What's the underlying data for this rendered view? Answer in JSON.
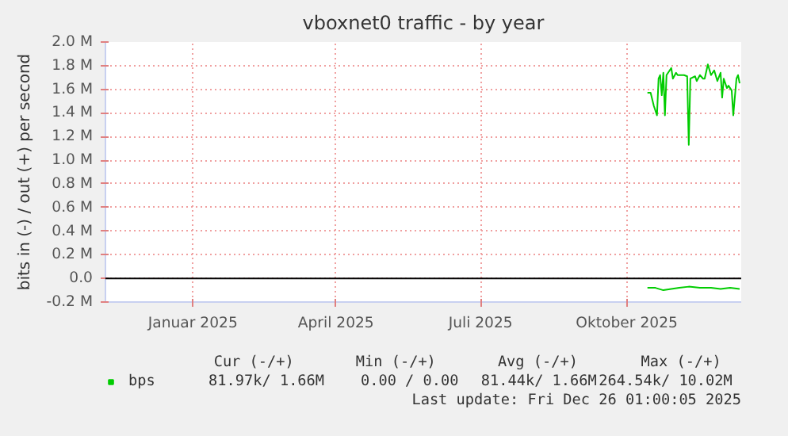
{
  "chart_data": {
    "type": "line",
    "title": "vboxnet0 traffic - by year",
    "ylabel": "bits in (-) / out (+) per second",
    "xlim": [
      "2024-11-22",
      "2025-12-27"
    ],
    "xticks": [
      {
        "value": "2025-01-16",
        "label": "Januar 2025"
      },
      {
        "value": "2025-04-16",
        "label": "April 2025"
      },
      {
        "value": "2025-07-16",
        "label": "Juli 2025"
      },
      {
        "value": "2025-10-16",
        "label": "Oktober 2025"
      }
    ],
    "ylim": [
      -0.2,
      2.0
    ],
    "yticks": [
      {
        "value": -0.2,
        "label": "-0.2 M"
      },
      {
        "value": 0.0,
        "label": "0.0"
      },
      {
        "value": 0.2,
        "label": "0.2 M"
      },
      {
        "value": 0.4,
        "label": "0.4 M"
      },
      {
        "value": 0.6,
        "label": "0.6 M"
      },
      {
        "value": 0.8,
        "label": "0.8 M"
      },
      {
        "value": 1.0,
        "label": "1.0 M"
      },
      {
        "value": 1.2,
        "label": "1.2 M"
      },
      {
        "value": 1.4,
        "label": "1.4 M"
      },
      {
        "value": 1.6,
        "label": "1.6 M"
      },
      {
        "value": 1.8,
        "label": "1.8 M"
      },
      {
        "value": 2.0,
        "label": "2.0 M"
      }
    ],
    "grid": true,
    "legend": "bottom left",
    "ref_lines": [
      {
        "axis": "y",
        "value": 0,
        "color": "#000000"
      }
    ],
    "series": [
      {
        "name": "bps",
        "color": "#00cc00",
        "x": [
          "2025-10-29",
          "2025-10-31",
          "2025-11-02",
          "2025-11-04",
          "2025-11-05",
          "2025-11-06",
          "2025-11-07",
          "2025-11-08",
          "2025-11-09",
          "2025-11-10",
          "2025-11-12",
          "2025-11-13",
          "2025-11-14",
          "2025-11-16",
          "2025-11-17",
          "2025-11-21",
          "2025-11-23",
          "2025-11-24",
          "2025-11-25",
          "2025-11-28",
          "2025-11-29",
          "2025-12-01",
          "2025-12-03",
          "2025-12-04",
          "2025-12-06",
          "2025-12-08",
          "2025-12-10",
          "2025-12-12",
          "2025-12-14",
          "2025-12-15",
          "2025-12-16",
          "2025-12-18",
          "2025-12-19",
          "2025-12-21",
          "2025-12-22",
          "2025-12-24",
          "2025-12-25",
          "2025-12-26"
        ],
        "values": [
          1.57,
          1.57,
          1.46,
          1.38,
          1.69,
          1.72,
          1.55,
          1.74,
          1.38,
          1.72,
          1.76,
          1.78,
          1.69,
          1.74,
          1.72,
          1.72,
          1.71,
          1.13,
          1.69,
          1.71,
          1.67,
          1.72,
          1.69,
          1.69,
          1.81,
          1.72,
          1.76,
          1.67,
          1.74,
          1.53,
          1.69,
          1.61,
          1.63,
          1.59,
          1.38,
          1.69,
          1.72,
          1.65
        ]
      },
      {
        "color": "#00cc00",
        "x": [
          "2025-10-29",
          "2025-11-03",
          "2025-11-08",
          "2025-11-13",
          "2025-11-18",
          "2025-11-24",
          "2025-12-01",
          "2025-12-08",
          "2025-12-14",
          "2025-12-20",
          "2025-12-26"
        ],
        "values": [
          -0.08,
          -0.08,
          -0.1,
          -0.09,
          -0.08,
          -0.07,
          -0.08,
          -0.08,
          -0.09,
          -0.08,
          -0.09
        ]
      }
    ],
    "annotations": [
      "Cur (-/+)",
      "Min (-/+)",
      "Avg (-/+)",
      "Max (-/+)",
      "81.97k/   1.66M",
      "0.00 /   0.00",
      "81.44k/   1.66M",
      "264.54k/  10.02M",
      "Last update: Fri Dec 26 01:00:05 2025"
    ]
  }
}
